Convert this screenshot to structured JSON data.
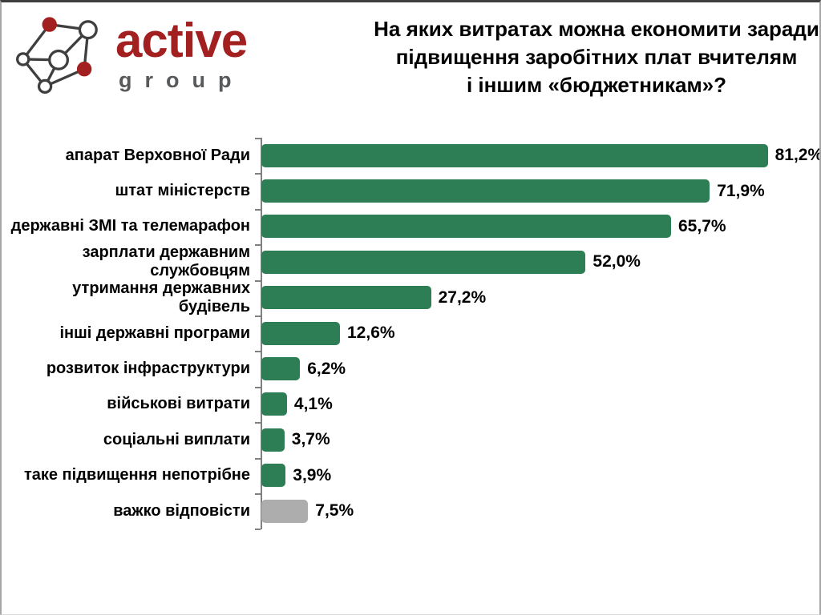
{
  "logo": {
    "brand": "active",
    "subbrand": "group",
    "brand_color": "#a32020",
    "subbrand_color": "#58595b",
    "node_outline_color": "#3f3f3f",
    "node_fill_red": "#a32020"
  },
  "title": {
    "lines": [
      "На яких витратах можна економити заради",
      "підвищення заробітних плат вчителям",
      "і іншим «бюджетникам»?"
    ]
  },
  "chart_data": {
    "type": "bar",
    "orientation": "horizontal",
    "title": "На яких витратах можна економити заради підвищення заробітних плат вчителям і іншим «бюджетникам»?",
    "categories": [
      "апарат Верховної Ради",
      "штат міністерств",
      "державні ЗМІ та телемарафон",
      "зарплати державним службовцям",
      "утримання державних будівель",
      "інші державні програми",
      "розвиток інфраструктури",
      "військові витрати",
      "соціальні виплати",
      "таке підвищення непотрібне",
      "важко відповісти"
    ],
    "values": [
      81.2,
      71.9,
      65.7,
      52.0,
      27.2,
      12.6,
      6.2,
      4.1,
      3.7,
      3.9,
      7.5
    ],
    "value_labels": [
      "81,2%",
      "71,9%",
      "65,7%",
      "52,0%",
      "27,2%",
      "12,6%",
      "6,2%",
      "4,1%",
      "3,7%",
      "3,9%",
      "7,5%"
    ],
    "xlim": [
      0,
      90
    ],
    "grid": false,
    "legend": "none",
    "xlabel": "",
    "ylabel": "",
    "bar_color_default": "#2e7e55",
    "bar_color_no_answer": "#adadad",
    "muted_category_index": 10,
    "axis_color": "#808080"
  }
}
